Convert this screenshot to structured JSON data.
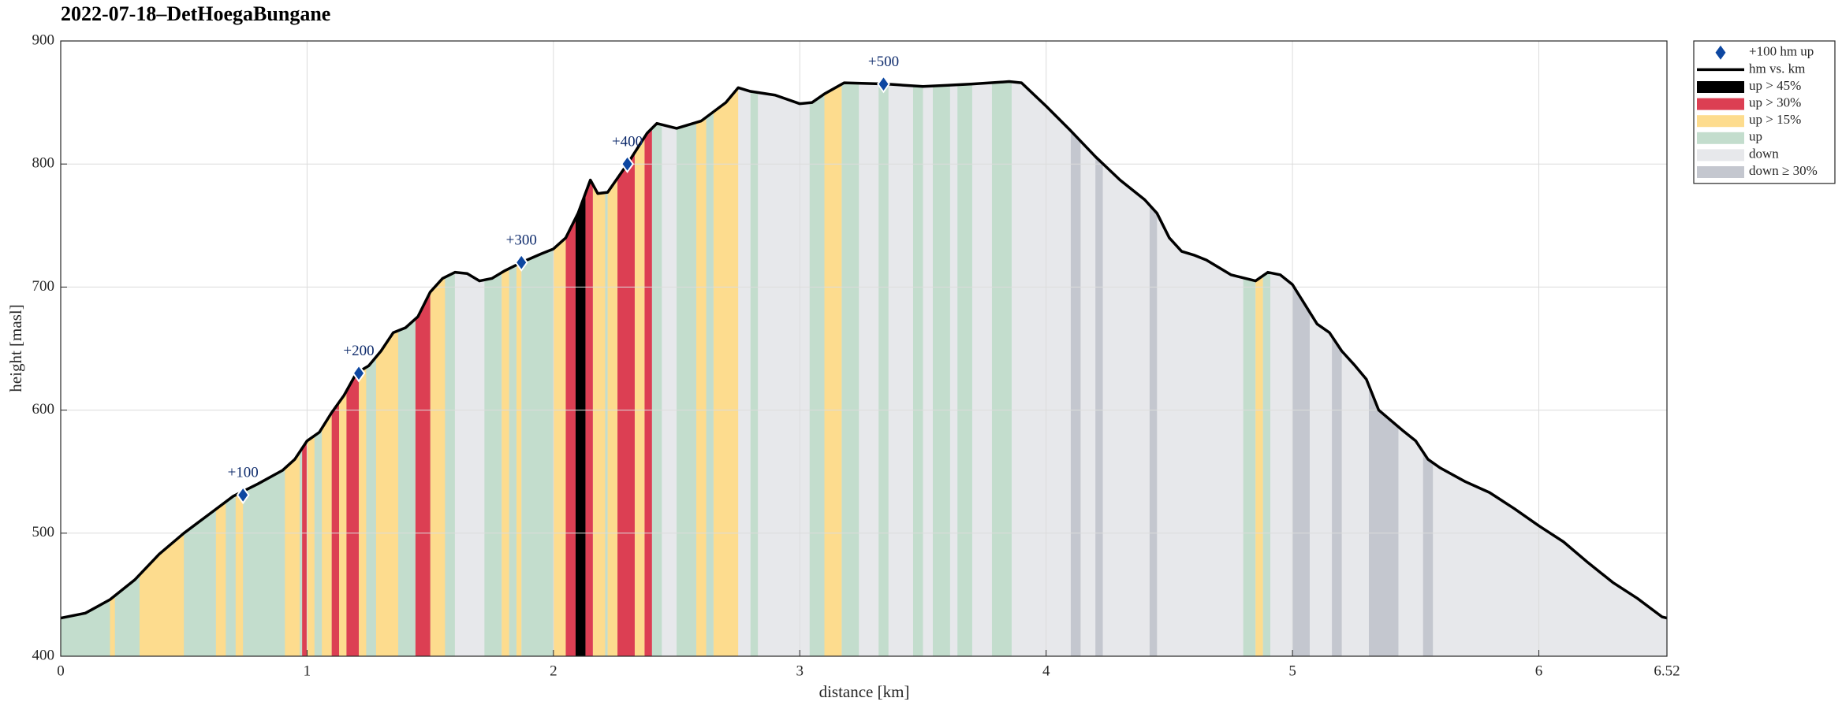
{
  "chart_data": {
    "type": "line",
    "title": "2022-07-18–DetHoegaBungane",
    "xlabel": "distance [km]",
    "ylabel": "height [masl]",
    "xlim": [
      0,
      6.52
    ],
    "ylim": [
      400,
      900
    ],
    "xticks": [
      0,
      1,
      2,
      3,
      4,
      5,
      6,
      6.52
    ],
    "yticks": [
      400,
      500,
      600,
      700,
      800,
      900
    ],
    "grid": true,
    "legend": "outside-right",
    "series": [
      {
        "name": "hm vs. km",
        "color": "#000000",
        "x": [
          0,
          0.1,
          0.2,
          0.3,
          0.4,
          0.5,
          0.6,
          0.7,
          0.8,
          0.9,
          0.95,
          1.0,
          1.05,
          1.1,
          1.15,
          1.2,
          1.25,
          1.3,
          1.35,
          1.4,
          1.45,
          1.5,
          1.55,
          1.6,
          1.65,
          1.7,
          1.75,
          1.8,
          1.87,
          1.95,
          2.0,
          2.05,
          2.1,
          2.15,
          2.18,
          2.22,
          2.3,
          2.38,
          2.42,
          2.5,
          2.6,
          2.7,
          2.75,
          2.8,
          2.9,
          3.0,
          3.05,
          3.1,
          3.18,
          3.35,
          3.5,
          3.6,
          3.7,
          3.85,
          3.9,
          4.0,
          4.1,
          4.2,
          4.3,
          4.4,
          4.45,
          4.5,
          4.55,
          4.6,
          4.65,
          4.7,
          4.75,
          4.85,
          4.9,
          4.95,
          5.0,
          5.05,
          5.1,
          5.15,
          5.2,
          5.25,
          5.3,
          5.35,
          5.45,
          5.5,
          5.55,
          5.6,
          5.7,
          5.8,
          5.9,
          6.0,
          6.1,
          6.2,
          6.3,
          6.4,
          6.5,
          6.52
        ],
        "values": [
          431,
          435,
          446,
          462,
          483,
          500,
          515,
          530,
          540,
          551,
          560,
          575,
          582,
          598,
          612,
          630,
          636,
          648,
          663,
          667,
          676,
          696,
          707,
          712,
          711,
          705,
          707,
          713,
          720,
          727,
          731,
          740,
          760,
          787,
          776,
          777,
          800,
          825,
          833,
          829,
          835,
          850,
          862,
          859,
          856,
          849,
          850,
          857,
          866,
          865,
          863,
          864,
          865,
          867,
          866,
          847,
          827,
          806,
          787,
          771,
          760,
          740,
          729,
          726,
          722,
          716,
          710,
          705,
          712,
          710,
          702,
          686,
          670,
          663,
          648,
          637,
          625,
          600,
          583,
          575,
          560,
          553,
          542,
          533,
          520,
          506,
          493,
          476,
          460,
          447,
          432,
          431
        ]
      }
    ],
    "markers": {
      "name": "+100 hm up",
      "color": "#0d47a1",
      "x": [
        0.74,
        1.21,
        1.87,
        2.3,
        3.34
      ],
      "values": [
        531,
        630,
        720,
        800,
        865
      ],
      "labels": [
        "+100",
        "+200",
        "+300",
        "+400",
        "+500"
      ]
    },
    "bands": [
      {
        "name": "up > 45%",
        "color": "#000000",
        "intervals": [
          [
            2.09,
            2.13
          ]
        ]
      },
      {
        "name": "up > 30%",
        "color": "#dc3f53",
        "intervals": [
          [
            0.98,
            1.0
          ],
          [
            1.1,
            1.13
          ],
          [
            1.16,
            1.21
          ],
          [
            1.44,
            1.5
          ],
          [
            2.05,
            2.09
          ],
          [
            2.13,
            2.16
          ],
          [
            2.26,
            2.33
          ],
          [
            2.37,
            2.4
          ]
        ]
      },
      {
        "name": "up > 15%",
        "color": "#fddc8e",
        "intervals": [
          [
            0.2,
            0.22
          ],
          [
            0.32,
            0.5
          ],
          [
            0.63,
            0.67
          ],
          [
            0.71,
            0.74
          ],
          [
            0.91,
            0.97
          ],
          [
            1.0,
            1.03
          ],
          [
            1.06,
            1.1
          ],
          [
            1.13,
            1.16
          ],
          [
            1.21,
            1.24
          ],
          [
            1.28,
            1.37
          ],
          [
            1.5,
            1.56
          ],
          [
            1.79,
            1.82
          ],
          [
            1.85,
            1.87
          ],
          [
            2.0,
            2.05
          ],
          [
            2.16,
            2.21
          ],
          [
            2.22,
            2.26
          ],
          [
            2.33,
            2.37
          ],
          [
            2.58,
            2.62
          ],
          [
            2.65,
            2.75
          ],
          [
            3.1,
            3.17
          ],
          [
            4.85,
            4.88
          ]
        ]
      },
      {
        "name": "up",
        "color": "#c3ddcd",
        "intervals": [
          [
            0,
            1.6
          ],
          [
            1.72,
            1.79
          ],
          [
            1.82,
            1.85
          ],
          [
            1.87,
            2.0
          ],
          [
            2.2,
            2.22
          ],
          [
            2.4,
            2.44
          ],
          [
            2.5,
            2.58
          ],
          [
            2.62,
            2.65
          ],
          [
            2.8,
            2.83
          ],
          [
            3.04,
            3.1
          ],
          [
            3.17,
            3.24
          ],
          [
            3.32,
            3.36
          ],
          [
            3.46,
            3.5
          ],
          [
            3.54,
            3.61
          ],
          [
            3.64,
            3.7
          ],
          [
            3.78,
            3.86
          ],
          [
            4.8,
            4.85
          ],
          [
            4.88,
            4.91
          ]
        ]
      },
      {
        "name": "down",
        "color": "#e7e8eb",
        "intervals": [
          [
            1.56,
            6.52
          ]
        ]
      },
      {
        "name": "down ≥ 30%",
        "color": "#c4c7cf",
        "intervals": [
          [
            4.1,
            4.14
          ],
          [
            4.2,
            4.23
          ],
          [
            4.42,
            4.45
          ],
          [
            5.0,
            5.07
          ],
          [
            5.16,
            5.2
          ],
          [
            5.31,
            5.43
          ],
          [
            5.53,
            5.57
          ]
        ]
      }
    ]
  }
}
